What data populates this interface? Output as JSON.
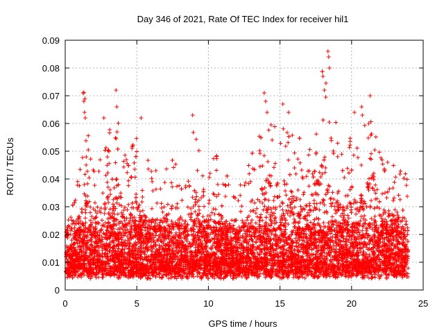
{
  "chart_data": {
    "type": "scatter",
    "title": "Day 346 of 2021, Rate Of TEC Index for receiver hil1",
    "xlabel": "GPS time / hours",
    "ylabel": "ROTI / TECUs",
    "xlim": [
      0,
      25
    ],
    "ylim": [
      0,
      0.09
    ],
    "xticks": [
      "0",
      "5",
      "10",
      "15",
      "20",
      "25"
    ],
    "yticks": [
      "0",
      "0.01",
      "0.02",
      "0.03",
      "0.04",
      "0.05",
      "0.06",
      "0.07",
      "0.08",
      "0.09"
    ],
    "grid": true,
    "marker": "+",
    "color": "#ff0000",
    "series": [
      {
        "name": "ROTI",
        "envelope_hours": [
          0,
          0.5,
          1,
          1.3,
          1.6,
          2,
          2.5,
          3,
          3.5,
          4,
          4.5,
          5,
          5.5,
          6,
          6.5,
          7,
          7.5,
          8,
          8.5,
          9,
          9.5,
          10,
          10.5,
          11,
          11.5,
          12,
          12.5,
          13,
          13.5,
          14,
          14.5,
          15,
          15.5,
          16,
          16.5,
          17,
          17.5,
          18,
          18.5,
          19,
          19.5,
          20,
          20.5,
          21,
          21.5,
          22,
          22.5,
          23,
          23.5,
          24
        ],
        "envelope_max": [
          0.022,
          0.03,
          0.045,
          0.072,
          0.065,
          0.048,
          0.05,
          0.063,
          0.072,
          0.052,
          0.048,
          0.062,
          0.052,
          0.045,
          0.042,
          0.045,
          0.05,
          0.04,
          0.038,
          0.063,
          0.045,
          0.042,
          0.052,
          0.043,
          0.04,
          0.035,
          0.042,
          0.05,
          0.055,
          0.071,
          0.062,
          0.067,
          0.064,
          0.058,
          0.055,
          0.05,
          0.058,
          0.087,
          0.063,
          0.06,
          0.05,
          0.064,
          0.05,
          0.068,
          0.07,
          0.053,
          0.048,
          0.048,
          0.045,
          0.044
        ],
        "hotspots": [
          {
            "x": 1.25,
            "y": 0.071
          },
          {
            "x": 1.3,
            "y": 0.068
          },
          {
            "x": 1.35,
            "y": 0.064
          },
          {
            "x": 1.4,
            "y": 0.062
          },
          {
            "x": 2.7,
            "y": 0.062
          },
          {
            "x": 3.55,
            "y": 0.072
          },
          {
            "x": 3.6,
            "y": 0.066
          },
          {
            "x": 5.3,
            "y": 0.062
          },
          {
            "x": 8.9,
            "y": 0.063
          },
          {
            "x": 13.9,
            "y": 0.071
          },
          {
            "x": 14.0,
            "y": 0.068
          },
          {
            "x": 14.1,
            "y": 0.064
          },
          {
            "x": 15.2,
            "y": 0.067
          },
          {
            "x": 15.6,
            "y": 0.064
          },
          {
            "x": 18.0,
            "y": 0.077
          },
          {
            "x": 18.1,
            "y": 0.072
          },
          {
            "x": 18.35,
            "y": 0.086
          },
          {
            "x": 18.4,
            "y": 0.084
          },
          {
            "x": 18.45,
            "y": 0.08
          },
          {
            "x": 20.2,
            "y": 0.064
          },
          {
            "x": 20.7,
            "y": 0.066
          },
          {
            "x": 20.75,
            "y": 0.063
          },
          {
            "x": 21.3,
            "y": 0.07
          },
          {
            "x": 21.2,
            "y": 0.06
          }
        ]
      }
    ]
  }
}
